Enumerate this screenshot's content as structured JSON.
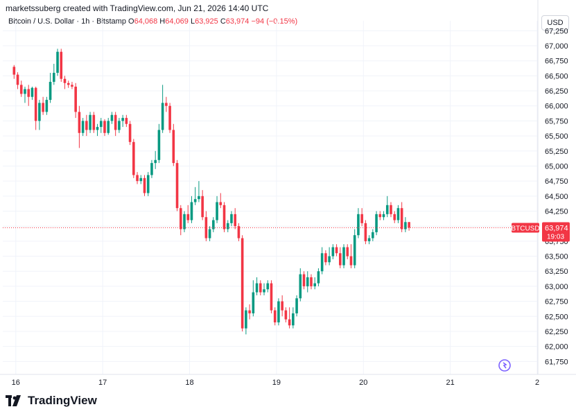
{
  "header": {
    "attribution": "marketssuberg created with TradingView.com, Jun 21, 2026 14:40 UTC",
    "symbol": "Bitcoin / U.S. Dollar · 1h · Bitstamp",
    "o_label": "O",
    "o_value": "64,068",
    "h_label": "H",
    "h_value": "64,069",
    "l_label": "L",
    "l_value": "63,925",
    "c_label": "C",
    "c_value": "63,974",
    "change": "−94 (−0.15%)",
    "currency": "USD"
  },
  "price_tag": {
    "symbol": "BTCUSD",
    "price": "63,974",
    "countdown": "19:03"
  },
  "brand": {
    "name": "TradingView"
  },
  "colors": {
    "up": "#089981",
    "down": "#f23645",
    "grid": "#f0f3fa",
    "axis_text": "#131722"
  },
  "chart_data": {
    "type": "candlestick",
    "y_ticks": [
      {
        "value": 61750,
        "label": "61,750"
      },
      {
        "value": 62000,
        "label": "62,000"
      },
      {
        "value": 62250,
        "label": "62,250"
      },
      {
        "value": 62500,
        "label": "62,500"
      },
      {
        "value": 62750,
        "label": "62,750"
      },
      {
        "value": 63000,
        "label": "63,000"
      },
      {
        "value": 63250,
        "label": "63,250"
      },
      {
        "value": 63500,
        "label": "63,500"
      },
      {
        "value": 63750,
        "label": "63,750"
      },
      {
        "value": 64000,
        "label": "64,000"
      },
      {
        "value": 64250,
        "label": "64,250"
      },
      {
        "value": 64500,
        "label": "64,500"
      },
      {
        "value": 64750,
        "label": "64,750"
      },
      {
        "value": 65000,
        "label": "65,000"
      },
      {
        "value": 65250,
        "label": "65,250"
      },
      {
        "value": 65500,
        "label": "65,500"
      },
      {
        "value": 65750,
        "label": "65,750"
      },
      {
        "value": 66000,
        "label": "66,000"
      },
      {
        "value": 66250,
        "label": "66,250"
      },
      {
        "value": 66500,
        "label": "66,500"
      },
      {
        "value": 66750,
        "label": "66,750"
      },
      {
        "value": 67000,
        "label": "67,000"
      },
      {
        "value": 67250,
        "label": "67,250"
      }
    ],
    "ylim": [
      61650,
      67300
    ],
    "x_ticks": [
      {
        "day": 16,
        "label": "16"
      },
      {
        "day": 17,
        "label": "17"
      },
      {
        "day": 18,
        "label": "18"
      },
      {
        "day": 19,
        "label": "19"
      },
      {
        "day": 20,
        "label": "20"
      },
      {
        "day": 21,
        "label": "21"
      },
      {
        "day": 22,
        "label": "2"
      }
    ],
    "xlim": [
      15.85,
      22.0
    ],
    "last_price": 63974,
    "candles_start_day": 15.98,
    "candle_interval_day": 0.0417,
    "candles": [
      [
        66650,
        66680,
        66450,
        66520
      ],
      [
        66520,
        66560,
        66280,
        66350
      ],
      [
        66350,
        66420,
        66150,
        66200
      ],
      [
        66200,
        66320,
        66050,
        66280
      ],
      [
        66280,
        66350,
        66000,
        66150
      ],
      [
        66150,
        66320,
        66100,
        66300
      ],
      [
        66300,
        66320,
        65600,
        65750
      ],
      [
        65750,
        66100,
        65600,
        66050
      ],
      [
        66050,
        66150,
        65850,
        65900
      ],
      [
        65900,
        66150,
        65850,
        66100
      ],
      [
        66100,
        66550,
        66050,
        66400
      ],
      [
        66400,
        66700,
        66350,
        66550
      ],
      [
        66550,
        66950,
        66500,
        66900
      ],
      [
        66900,
        66950,
        66400,
        66450
      ],
      [
        66450,
        66500,
        66280,
        66380
      ],
      [
        66380,
        66420,
        66300,
        66350
      ],
      [
        66350,
        66400,
        66280,
        66320
      ],
      [
        66320,
        66380,
        65800,
        65900
      ],
      [
        65900,
        66000,
        65300,
        65550
      ],
      [
        65550,
        65800,
        65500,
        65750
      ],
      [
        65750,
        65850,
        65500,
        65600
      ],
      [
        65600,
        65900,
        65550,
        65850
      ],
      [
        65850,
        65900,
        65550,
        65600
      ],
      [
        65600,
        65700,
        65500,
        65650
      ],
      [
        65650,
        65800,
        65550,
        65750
      ],
      [
        65750,
        65780,
        65500,
        65550
      ],
      [
        65550,
        65800,
        65520,
        65750
      ],
      [
        65750,
        65900,
        65700,
        65850
      ],
      [
        65850,
        65900,
        65500,
        65600
      ],
      [
        65600,
        65800,
        65550,
        65750
      ],
      [
        65750,
        65850,
        65650,
        65800
      ],
      [
        65800,
        65850,
        65650,
        65700
      ],
      [
        65700,
        65750,
        65350,
        65400
      ],
      [
        65400,
        65450,
        64800,
        64850
      ],
      [
        64850,
        64900,
        64700,
        64750
      ],
      [
        64750,
        64850,
        64700,
        64800
      ],
      [
        64800,
        64850,
        64500,
        64550
      ],
      [
        64550,
        64900,
        64500,
        64850
      ],
      [
        64850,
        65100,
        64800,
        65050
      ],
      [
        65050,
        65250,
        64950,
        65100
      ],
      [
        65100,
        65700,
        65050,
        65600
      ],
      [
        65600,
        66350,
        65550,
        66050
      ],
      [
        66050,
        66150,
        65900,
        66000
      ],
      [
        66000,
        66050,
        65550,
        65600
      ],
      [
        65600,
        65700,
        65000,
        65050
      ],
      [
        65050,
        65100,
        64250,
        64300
      ],
      [
        64300,
        64350,
        63850,
        63950
      ],
      [
        63950,
        64250,
        63900,
        64200
      ],
      [
        64200,
        64350,
        64050,
        64100
      ],
      [
        64100,
        64500,
        64050,
        64400
      ],
      [
        64400,
        64650,
        64350,
        64450
      ],
      [
        64450,
        64750,
        64400,
        64500
      ],
      [
        64500,
        64600,
        64100,
        64150
      ],
      [
        64150,
        64250,
        63750,
        63800
      ],
      [
        63800,
        64000,
        63750,
        63950
      ],
      [
        63950,
        64150,
        63900,
        64100
      ],
      [
        64100,
        64500,
        64050,
        64400
      ],
      [
        64400,
        64550,
        64300,
        64350
      ],
      [
        64350,
        64400,
        63900,
        63950
      ],
      [
        63950,
        64100,
        63900,
        64050
      ],
      [
        64050,
        64250,
        64000,
        64200
      ],
      [
        64200,
        64300,
        63950,
        64000
      ],
      [
        64000,
        64050,
        63750,
        63800
      ],
      [
        63800,
        63850,
        62250,
        62300
      ],
      [
        62300,
        62650,
        62200,
        62600
      ],
      [
        62600,
        62700,
        62450,
        62550
      ],
      [
        62550,
        63100,
        62500,
        62900
      ],
      [
        62900,
        63150,
        62850,
        63050
      ],
      [
        63050,
        63100,
        62850,
        62900
      ],
      [
        62900,
        63050,
        62850,
        62950
      ],
      [
        62950,
        63100,
        62900,
        63050
      ],
      [
        63050,
        63100,
        62550,
        62600
      ],
      [
        62600,
        62650,
        62350,
        62400
      ],
      [
        62400,
        62800,
        62350,
        62750
      ],
      [
        62750,
        62850,
        62500,
        62600
      ],
      [
        62600,
        62650,
        62400,
        62450
      ],
      [
        62450,
        62650,
        62300,
        62350
      ],
      [
        62350,
        62650,
        62300,
        62550
      ],
      [
        62550,
        62850,
        62500,
        62800
      ],
      [
        62800,
        63300,
        62750,
        63200
      ],
      [
        63200,
        63250,
        62950,
        63000
      ],
      [
        63000,
        63250,
        62900,
        63150
      ],
      [
        63150,
        63200,
        62950,
        63000
      ],
      [
        63000,
        63150,
        62950,
        63050
      ],
      [
        63050,
        63300,
        63000,
        63250
      ],
      [
        63250,
        63650,
        63200,
        63550
      ],
      [
        63550,
        63600,
        63350,
        63400
      ],
      [
        63400,
        63650,
        63350,
        63500
      ],
      [
        63500,
        63700,
        63450,
        63650
      ],
      [
        63650,
        63700,
        63500,
        63550
      ],
      [
        63550,
        63650,
        63300,
        63350
      ],
      [
        63350,
        63700,
        63300,
        63650
      ],
      [
        63650,
        63700,
        63450,
        63500
      ],
      [
        63500,
        63700,
        63300,
        63350
      ],
      [
        63350,
        63950,
        63300,
        63850
      ],
      [
        63850,
        64300,
        63800,
        64200
      ],
      [
        64200,
        64300,
        64000,
        64050
      ],
      [
        64050,
        64100,
        63700,
        63750
      ],
      [
        63750,
        63850,
        63700,
        63800
      ],
      [
        63800,
        63950,
        63750,
        63900
      ],
      [
        63900,
        64250,
        63850,
        64200
      ],
      [
        64200,
        64250,
        64100,
        64150
      ],
      [
        64150,
        64250,
        64100,
        64200
      ],
      [
        64200,
        64500,
        64150,
        64350
      ],
      [
        64350,
        64400,
        64150,
        64200
      ],
      [
        64200,
        64250,
        64050,
        64100
      ],
      [
        64100,
        64350,
        64050,
        64300
      ],
      [
        64300,
        64400,
        63900,
        63950
      ],
      [
        63950,
        64150,
        63900,
        64068
      ],
      [
        64068,
        64069,
        63925,
        63974
      ]
    ]
  }
}
